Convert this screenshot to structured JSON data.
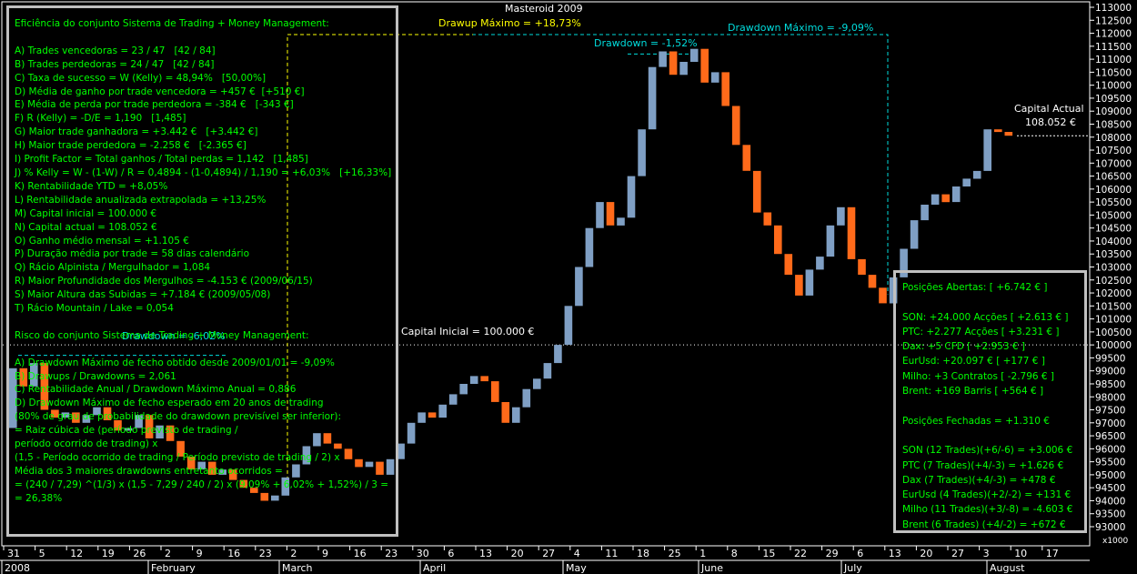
{
  "chart_data": {
    "type": "candlestick",
    "title": "Masteroid 2009",
    "y_ticks": [
      "113000",
      "112500",
      "112000",
      "111500",
      "111000",
      "110500",
      "110000",
      "109500",
      "109000",
      "108500",
      "108000",
      "107500",
      "107000",
      "106500",
      "106000",
      "105500",
      "105000",
      "104500",
      "104000",
      "103500",
      "103000",
      "102500",
      "102000",
      "101500",
      "101000",
      "100500",
      "100000",
      "99500",
      "99000",
      "98500",
      "98000",
      "97500",
      "97000",
      "96500",
      "96000",
      "95500",
      "95000",
      "94500",
      "94000",
      "93500",
      "93000"
    ],
    "ylim": [
      92800,
      113200
    ],
    "y_axis_unit_label": "x1000",
    "x_day_ticks": [
      "31",
      "5",
      "12",
      "19",
      "26",
      "2",
      "9",
      "16",
      "23",
      "2",
      "9",
      "16",
      "23",
      "30",
      "6",
      "13",
      "20",
      "27",
      "4",
      "11",
      "18",
      "25",
      "1",
      "8",
      "15",
      "22",
      "29",
      "6",
      "13",
      "20",
      "27",
      "3",
      "10",
      "17"
    ],
    "x_months": [
      "2008",
      "February",
      "March",
      "April",
      "May",
      "June",
      "July",
      "August"
    ],
    "price_series": {
      "name": "equity",
      "values": [
        96800,
        99100,
        98400,
        99300,
        97500,
        97200,
        97400,
        97000,
        97300,
        97600,
        97100,
        96700,
        96800,
        97300,
        96400,
        96900,
        96300,
        95700,
        95200,
        95500,
        95000,
        95200,
        94800,
        94500,
        94300,
        94000,
        94200,
        94900,
        95400,
        96100,
        96600,
        96200,
        96000,
        95600,
        95300,
        95500,
        95000,
        95600,
        96200,
        97000,
        97400,
        97200,
        97700,
        98100,
        98500,
        98800,
        98600,
        97800,
        97000,
        97600,
        98300,
        98700,
        99300,
        100000,
        101500,
        103000,
        104500,
        105500,
        104600,
        104900,
        106500,
        108300,
        110700,
        111300,
        110400,
        110900,
        111400,
        110100,
        110500,
        109200,
        107700,
        106700,
        105100,
        104600,
        103500,
        102700,
        101900,
        102900,
        103400,
        104600,
        105300,
        103300,
        102700,
        102200,
        101600,
        102600,
        103700,
        104800,
        105400,
        105800,
        105500,
        106100,
        106400,
        106700,
        108300,
        108200,
        108052
      ]
    },
    "annotations": {
      "drawup_max": "Drawup Máximo = +18,73%",
      "drawdown_max": "Drawdown Máximo = -9,09%",
      "drawdown_1": "Drawdown = -1,52%",
      "drawdown_2": "Drawdown = -6,02%",
      "capital_inicial": "Capital Inicial = 100.000 €",
      "capital_actual_label": "Capital Actual",
      "capital_actual_value": "108.052 €"
    },
    "colors": {
      "up": "#7f9fc4",
      "down": "#ff6a1a",
      "background": "#000000",
      "text": "#00ff00",
      "drawup": "#ffff00",
      "drawdown": "#00dddd",
      "panel_border": "#c0c0c0"
    }
  },
  "left_panel": {
    "lines": [
      "Eficiência do conjunto Sistema de Trading + Money Management:",
      "",
      "A) Trades vencedoras = 23 / 47   [42 / 84]",
      "B) Trades perdedoras = 24 / 47   [42 / 84]",
      "C) Taxa de sucesso = W (Kelly) = 48,94%   [50,00%]",
      "D) Média de ganho por trade vencedora = +457 €  [+510 €]",
      "E) Média de perda por trade perdedora = -384 €   [-343 €]",
      "F) R (Kelly) = -D/E = 1,190   [1,485]",
      "G) Maior trade ganhadora = +3.442 €   [+3.442 €]",
      "H) Maior trade perdedora = -2.258 €   [-2.365 €]",
      "I) Profit Factor = Total ganhos / Total perdas = 1,142   [1,485]",
      "J) % Kelly = W - (1-W) / R = 0,4894 - (1-0,4894) / 1,190 = +6,03%   [+16,33%]",
      "K) Rentabilidade YTD = +8,05%",
      "L) Rentabilidade anualizada extrapolada = +13,25%",
      "M) Capital inicial = 100.000 €",
      "N) Capital actual = 108.052 €",
      "O) Ganho médio mensal = +1.105 €",
      "P) Duração média por trade = 58 dias calendário",
      "Q) Rácio Alpinista / Mergulhador = 1,084",
      "R) Maior Profundidade dos Mergulhos = -4.153 € (2009/06/15)",
      "S) Maior Altura das Subidas = +7.184 € (2009/05/08)",
      "T) Rácio Mountain / Lake = 0,054",
      "",
      "Risco do conjunto Sistema de Trading + Money Management:",
      "",
      "A) Drawdown Máximo de fecho obtido desde 2009/01/01 = -9,09%",
      "B) Drawups / Drawdowns = 2,061",
      "C) Rentabilidade Anual / Drawdown Máximo Anual = 0,886",
      "D) Drawdown Máximo de fecho esperado em 20 anos de trading",
      "(80% de grau de probabilidade do drawdown previsível ser inferior):",
      "= Raiz cúbica de (período previsto de trading /",
      "período ocorrido de trading) x",
      "(1,5 - Período ocorrido de trading / Período previsto de trading / 2) x",
      "Média dos 3 maiores drawdowns entretanto ocorridos =",
      "= (240 / 7,29) ^(1/3) x (1,5 - 7,29 / 240 / 2) x (9,09% + 6,02% + 1,52%) / 3 =",
      "= 26,38%"
    ]
  },
  "right_panel": {
    "lines": [
      "Posições Abertas: [ +6.742 € ]",
      "",
      "SON: +24.000 Acções [ +2.613 € ]",
      "PTC: +2.277 Acções [ +3.231 € ]",
      "Dax: +5 CFD [ +2.953 € ]",
      "EurUsd: +20.097 € [ +177 € ]",
      "Milho: +3 Contratos [ -2.796 € ]",
      "Brent: +169 Barris [ +564 € ]",
      "",
      "Posições Fechadas = +1.310 €",
      "",
      "SON (12 Trades)(+6/-6) = +3.006 €",
      "PTC (7 Trades)(+4/-3) = +1.626 €",
      "Dax (7 Trades)(+4/-3) = +478 €",
      "EurUsd (4 Trades)(+2/-2) = +131 €",
      "Milho (11 Trades)(+3/-8) = -4.603 €",
      "Brent (6 Trades) (+4/-2) = +672 €"
    ]
  }
}
